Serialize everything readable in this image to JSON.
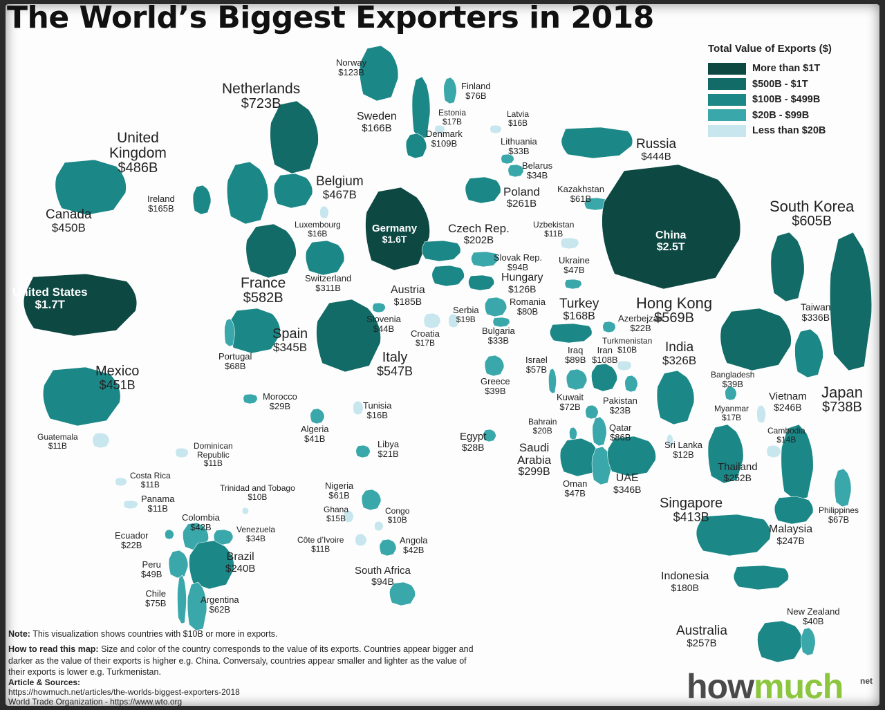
{
  "title": "The World’s Biggest Exporters in 2018",
  "legend": {
    "title": "Total Value of Exports ($)",
    "items": [
      {
        "label": "More than $1T",
        "color": "#0d4843"
      },
      {
        "label": "$500B - $1T",
        "color": "#126b66"
      },
      {
        "label": "$100B - $499B",
        "color": "#1b8787"
      },
      {
        "label": "$20B - $99B",
        "color": "#3aa7aa"
      },
      {
        "label": "Less than $20B",
        "color": "#c7e6ee"
      }
    ]
  },
  "countries": [
    {
      "name": "United States",
      "value": "$1.7T"
    },
    {
      "name": "Canada",
      "value": "$450B"
    },
    {
      "name": "Mexico",
      "value": "$451B"
    },
    {
      "name": "Guatemala",
      "value": "$11B"
    },
    {
      "name": "Costa Rica",
      "value": "$11B"
    },
    {
      "name": "Panama",
      "value": "$11B"
    },
    {
      "name": "Dominican Republic",
      "value": "$11B"
    },
    {
      "name": "Trinidad and Tobago",
      "value": "$10B"
    },
    {
      "name": "Colombia",
      "value": "$42B"
    },
    {
      "name": "Venezuela",
      "value": "$34B"
    },
    {
      "name": "Ecuador",
      "value": "$22B"
    },
    {
      "name": "Peru",
      "value": "$49B"
    },
    {
      "name": "Brazil",
      "value": "$240B"
    },
    {
      "name": "Chile",
      "value": "$75B"
    },
    {
      "name": "Argentina",
      "value": "$62B"
    },
    {
      "name": "United Kingdom",
      "value": "$486B"
    },
    {
      "name": "Ireland",
      "value": "$165B"
    },
    {
      "name": "Netherlands",
      "value": "$723B"
    },
    {
      "name": "Belgium",
      "value": "$467B"
    },
    {
      "name": "Luxembourg",
      "value": "$16B"
    },
    {
      "name": "France",
      "value": "$582B"
    },
    {
      "name": "Switzerland",
      "value": "$311B"
    },
    {
      "name": "Spain",
      "value": "$345B"
    },
    {
      "name": "Portugal",
      "value": "$68B"
    },
    {
      "name": "Italy",
      "value": "$547B"
    },
    {
      "name": "Germany",
      "value": "$1.6T"
    },
    {
      "name": "Czech Rep.",
      "value": "$202B"
    },
    {
      "name": "Slovak Rep.",
      "value": "$94B"
    },
    {
      "name": "Austria",
      "value": "$185B"
    },
    {
      "name": "Hungary",
      "value": "$126B"
    },
    {
      "name": "Slovenia",
      "value": "$44B"
    },
    {
      "name": "Croatia",
      "value": "$17B"
    },
    {
      "name": "Serbia",
      "value": "$19B"
    },
    {
      "name": "Romania",
      "value": "$80B"
    },
    {
      "name": "Bulgaria",
      "value": "$33B"
    },
    {
      "name": "Greece",
      "value": "$39B"
    },
    {
      "name": "Norway",
      "value": "$123B"
    },
    {
      "name": "Sweden",
      "value": "$166B"
    },
    {
      "name": "Finland",
      "value": "$76B"
    },
    {
      "name": "Estonia",
      "value": "$17B"
    },
    {
      "name": "Latvia",
      "value": "$16B"
    },
    {
      "name": "Denmark",
      "value": "$109B"
    },
    {
      "name": "Lithuania",
      "value": "$33B"
    },
    {
      "name": "Belarus",
      "value": "$34B"
    },
    {
      "name": "Poland",
      "value": "$261B"
    },
    {
      "name": "Ukraine",
      "value": "$47B"
    },
    {
      "name": "Russia",
      "value": "$444B"
    },
    {
      "name": "Kazakhstan",
      "value": "$61B"
    },
    {
      "name": "Uzbekistan",
      "value": "$11B"
    },
    {
      "name": "Turkey",
      "value": "$168B"
    },
    {
      "name": "Azerbejzan",
      "value": "$22B"
    },
    {
      "name": "Turkmenistan",
      "value": "$10B"
    },
    {
      "name": "Iraq",
      "value": "$89B"
    },
    {
      "name": "Iran",
      "value": "$108B"
    },
    {
      "name": "Israel",
      "value": "$57B"
    },
    {
      "name": "Kuwait",
      "value": "$72B"
    },
    {
      "name": "Pakistan",
      "value": "$23B"
    },
    {
      "name": "Bahrain",
      "value": "$20B"
    },
    {
      "name": "Qatar",
      "value": "$86B"
    },
    {
      "name": "Saudi Arabia",
      "value": "$299B"
    },
    {
      "name": "Oman",
      "value": "$47B"
    },
    {
      "name": "UAE",
      "value": "$346B"
    },
    {
      "name": "Morocco",
      "value": "$29B"
    },
    {
      "name": "Tunisia",
      "value": "$16B"
    },
    {
      "name": "Algeria",
      "value": "$41B"
    },
    {
      "name": "Libya",
      "value": "$21B"
    },
    {
      "name": "Egypt",
      "value": "$28B"
    },
    {
      "name": "Nigeria",
      "value": "$61B"
    },
    {
      "name": "Ghana",
      "value": "$15B"
    },
    {
      "name": "Congo",
      "value": "$10B"
    },
    {
      "name": "Côte d’Ivoire",
      "value": "$11B"
    },
    {
      "name": "Angola",
      "value": "$42B"
    },
    {
      "name": "South Africa",
      "value": "$94B"
    },
    {
      "name": "China",
      "value": "$2.5T"
    },
    {
      "name": "South Korea",
      "value": "$605B"
    },
    {
      "name": "Hong Kong",
      "value": "$569B"
    },
    {
      "name": "Taiwan",
      "value": "$336B"
    },
    {
      "name": "Japan",
      "value": "$738B"
    },
    {
      "name": "India",
      "value": "$326B"
    },
    {
      "name": "Bangladesh",
      "value": "$39B"
    },
    {
      "name": "Sri Lanka",
      "value": "$12B"
    },
    {
      "name": "Myanmar",
      "value": "$17B"
    },
    {
      "name": "Vietnam",
      "value": "$246B"
    },
    {
      "name": "Cambodia",
      "value": "$14B"
    },
    {
      "name": "Thailand",
      "value": "$252B"
    },
    {
      "name": "Philippines",
      "value": "$67B"
    },
    {
      "name": "Malaysia",
      "value": "$247B"
    },
    {
      "name": "Singapore",
      "value": "$413B"
    },
    {
      "name": "Indonesia",
      "value": "$180B"
    },
    {
      "name": "Australia",
      "value": "$257B"
    },
    {
      "name": "New Zealand",
      "value": "$40B"
    }
  ],
  "notes": {
    "note_label": "Note:",
    "note_text": "This visualization shows countries with $10B or more in exports.",
    "how_label": "How to read this map:",
    "how_text": "Size and color of the country corresponds to the value of its exports. Countries appear bigger and darker as the value of their exports is higher e.g. China. Conversaly, countries appear smaller and lighter as the value of their exports is lower e.g. Turkmenistan."
  },
  "sources": {
    "label": "Article & Sources:",
    "line1": "https://howmuch.net/articles/the-worlds-biggest-exporters-2018",
    "line2": "World Trade Organization - https://www.wto.org"
  },
  "logo": {
    "part1": "how",
    "part2": "much",
    "suffix": "net"
  }
}
